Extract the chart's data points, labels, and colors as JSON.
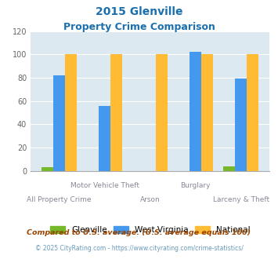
{
  "title_line1": "2015 Glenville",
  "title_line2": "Property Crime Comparison",
  "title_color": "#1a6faf",
  "groups": [
    "All Property Crime",
    "Motor Vehicle Theft",
    "Arson",
    "Burglary",
    "Larceny & Theft"
  ],
  "glenville": [
    3,
    0,
    0,
    0,
    4
  ],
  "west_virginia": [
    82,
    56,
    0,
    102,
    79
  ],
  "national": [
    100,
    100,
    100,
    100,
    100
  ],
  "glenville_color": "#76b82a",
  "wv_color": "#4499ee",
  "national_color": "#ffbb33",
  "bg_color": "#dce9f0",
  "ylim": [
    0,
    120
  ],
  "yticks": [
    0,
    20,
    40,
    60,
    80,
    100,
    120
  ],
  "top_labels": [
    [
      1,
      "Motor Vehicle Theft"
    ],
    [
      3,
      "Burglary"
    ]
  ],
  "bottom_labels": [
    [
      0,
      "All Property Crime"
    ],
    [
      2,
      "Arson"
    ],
    [
      4,
      "Larceny & Theft"
    ]
  ],
  "footnote1": "Compared to U.S. average. (U.S. average equals 100)",
  "footnote2": "© 2025 CityRating.com - https://www.cityrating.com/crime-statistics/",
  "footnote1_color": "#994400",
  "footnote2_color": "#6699bb",
  "legend_labels": [
    "Glenville",
    "West Virginia",
    "National"
  ],
  "bar_width": 0.26
}
